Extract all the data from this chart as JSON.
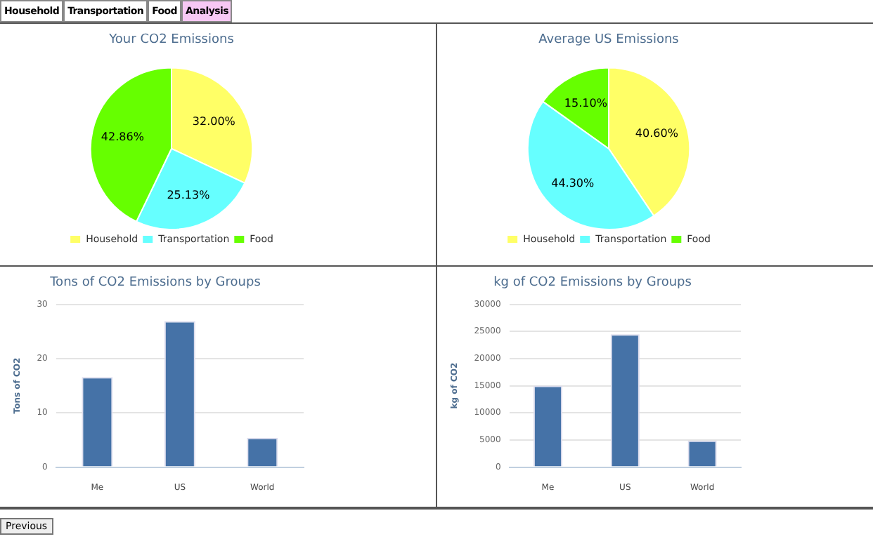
{
  "chart_data": [
    {
      "type": "pie",
      "title": "Your CO2 Emissions",
      "categories": [
        "Household",
        "Transportation",
        "Food"
      ],
      "values": [
        32.0,
        25.13,
        42.86
      ],
      "value_labels": [
        "32.00%",
        "25.13%",
        "42.86%"
      ],
      "colors": [
        "#ffff66",
        "#66ffff",
        "#66ff00"
      ],
      "legend": "bottom",
      "annotations": [
        "Household",
        "Transportation",
        "Food",
        "Analysis"
      ]
    },
    {
      "type": "pie",
      "title": "Average US Emissions",
      "categories": [
        "Household",
        "Transportation",
        "Food"
      ],
      "values": [
        40.6,
        44.3,
        15.1
      ],
      "value_labels": [
        "40.60%",
        "44.30%",
        "15.10%"
      ],
      "colors": [
        "#ffff66",
        "#66ffff",
        "#66ff00"
      ],
      "legend": "bottom"
    },
    {
      "type": "bar",
      "title": "Tons of CO2 Emissions by Groups",
      "ylabel": "Tons of CO2",
      "categories": [
        "Me",
        "US",
        "World"
      ],
      "values": [
        16.6,
        26.9,
        5.4
      ],
      "color": "#4572a7",
      "ylim": [
        0,
        30
      ],
      "yticks": [
        0,
        10,
        20,
        30
      ],
      "grid": "y",
      "legend": false
    },
    {
      "type": "bar",
      "title": "kg of CO2 Emissions by Groups",
      "ylabel": "kg of CO2",
      "categories": [
        "Me",
        "US",
        "World"
      ],
      "values": [
        15000,
        24500,
        4900
      ],
      "color": "#4572a7",
      "ylim": [
        0,
        30000
      ],
      "yticks": [
        0,
        5000,
        10000,
        15000,
        20000,
        25000,
        30000
      ],
      "grid": "y",
      "legend": false,
      "annotations": [
        "Previous"
      ]
    }
  ]
}
